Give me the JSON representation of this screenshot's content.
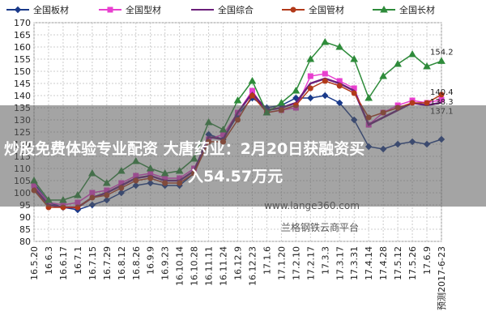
{
  "chart_data": {
    "type": "line",
    "categories": [
      "16.5.20",
      "16.6.3",
      "16.6.17",
      "16.7.1",
      "16.7.15",
      "16.7.29",
      "16.8.12",
      "16.8.26",
      "16.9.9",
      "16.9.23",
      "16.10.14",
      "16.10.28",
      "16.11.11",
      "16.11.24",
      "16.12.9",
      "16.12.23",
      "17.1.6",
      "17.1.20",
      "17.2.10",
      "17.2.17",
      "17.3.3",
      "17.3.17",
      "17.3.31",
      "17.4.14",
      "17.4.28",
      "17.5.12",
      "17.5.26",
      "17.6.9",
      "预测2017-6-23"
    ],
    "series": [
      {
        "name": "全国板材",
        "color": "#1a3a8a",
        "marker": "diamond",
        "values": [
          104,
          96,
          94,
          93,
          95,
          97,
          100,
          103,
          104,
          103,
          103,
          108,
          124,
          122,
          132,
          139,
          135,
          136,
          139,
          139,
          140,
          137,
          130,
          119,
          118,
          120,
          121,
          120,
          122
        ]
      },
      {
        "name": "全国型材",
        "color": "#e83fcf",
        "marker": "square",
        "values": [
          103,
          96,
          95,
          96,
          100,
          101,
          104,
          107,
          108,
          106,
          106,
          110,
          122,
          124,
          133,
          142,
          133,
          134,
          135,
          148,
          149,
          146,
          143,
          128,
          133,
          136,
          138,
          137,
          138.3
        ]
      },
      {
        "name": "全国综合",
        "color": "#6b1f7a",
        "marker": "none",
        "values": [
          102,
          95,
          94,
          94,
          98,
          100,
          103,
          106,
          107,
          105,
          105,
          109,
          123,
          122,
          133,
          141,
          134,
          135,
          137,
          145,
          147,
          145,
          142,
          128,
          131,
          134,
          137,
          136,
          137.1
        ]
      },
      {
        "name": "全国管材",
        "color": "#b23a1a",
        "marker": "circle",
        "values": [
          101,
          94,
          94,
          94,
          98,
          99,
          102,
          105,
          106,
          104,
          104,
          108,
          121,
          121,
          130,
          140,
          133,
          134,
          136,
          143,
          146,
          144,
          141,
          131,
          133,
          135,
          137,
          137,
          140.4
        ]
      },
      {
        "name": "全国长材",
        "color": "#2e8b3a",
        "marker": "triangle",
        "values": [
          105,
          97,
          97,
          99,
          108,
          104,
          109,
          113,
          110,
          108,
          109,
          114,
          129,
          126,
          138,
          146,
          133,
          137,
          142,
          155,
          162,
          160,
          155,
          139,
          148,
          153,
          157,
          152,
          154.2
        ]
      }
    ],
    "ylim": [
      80,
      170
    ],
    "yticks": [
      80,
      85,
      90,
      95,
      100,
      105,
      110,
      115,
      120,
      125,
      130,
      135,
      140,
      145,
      150,
      155,
      160,
      165,
      170
    ],
    "grid": true,
    "watermark": [
      "www.lange360.com",
      "兰格钢铁云商平台"
    ],
    "banner": [
      "炒股免费体验专业配资 大唐药业：2月20日获融资买",
      "入54.57万元"
    ]
  }
}
